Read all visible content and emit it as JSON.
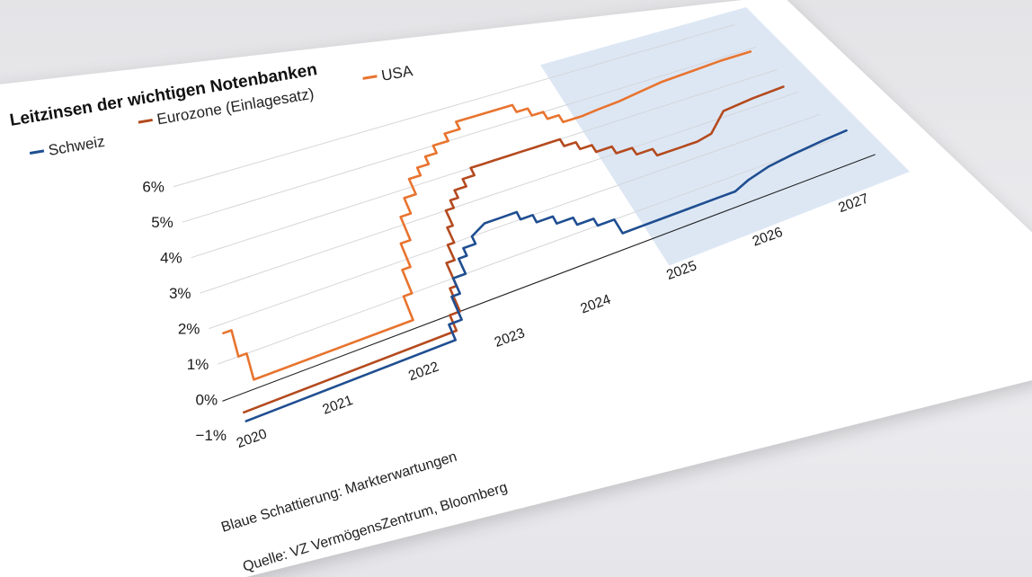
{
  "chart_data": {
    "type": "line",
    "title": "Leitzinsen der wichtigen Notenbanken",
    "legend": [
      "Schweiz",
      "Eurozone (Einlagesatz)",
      "USA"
    ],
    "y_tick_labels": [
      "6%",
      "5%",
      "4%",
      "3%",
      "2%",
      "1%",
      "0%",
      "−1%"
    ],
    "x_tick_labels": [
      "2020",
      "2021",
      "2022",
      "2023",
      "2024",
      "2025",
      "2026",
      "2027"
    ],
    "ylim": [
      -1,
      6.5
    ],
    "xlim": [
      2019.85,
      2027.7
    ],
    "shaded_region": {
      "from": 2024.9,
      "to": 2027.7,
      "label": "Blaue Schattierung: Markterwartungen"
    },
    "series": [
      {
        "name": "Schweiz",
        "color": "#1f4e91",
        "x": [
          2020.0,
          2022.45,
          2022.45,
          2022.6,
          2022.6,
          2022.7,
          2022.7,
          2022.85,
          2022.85,
          2022.95,
          2022.95,
          2023.1,
          2023.1,
          2023.3,
          2023.5,
          2023.7,
          2023.7,
          2023.85,
          2023.85,
          2024.05,
          2024.05,
          2024.25,
          2024.25,
          2024.45,
          2024.45,
          2024.65,
          2024.65,
          2024.9,
          2025.0,
          2025.4,
          2025.8,
          2026.0,
          2026.2,
          2026.5,
          2026.8,
          2027.2,
          2027.5
        ],
        "values": [
          -0.75,
          -0.75,
          -0.25,
          -0.25,
          0.5,
          0.5,
          1.0,
          1.0,
          1.5,
          1.5,
          1.75,
          1.75,
          2.0,
          2.25,
          2.25,
          2.25,
          2.0,
          2.0,
          1.75,
          1.75,
          1.5,
          1.5,
          1.25,
          1.25,
          1.0,
          1.0,
          0.5,
          0.5,
          0.5,
          0.5,
          0.5,
          0.5,
          0.7,
          0.9,
          1.0,
          1.1,
          1.15
        ]
      },
      {
        "name": "Eurozone (Einlagesatz)",
        "color": "#b44a1e",
        "x": [
          2020.0,
          2022.5,
          2022.5,
          2022.62,
          2022.62,
          2022.7,
          2022.7,
          2022.8,
          2022.8,
          2022.88,
          2022.88,
          2022.95,
          2022.95,
          2023.05,
          2023.05,
          2023.15,
          2023.15,
          2023.3,
          2023.3,
          2023.45,
          2023.45,
          2023.6,
          2023.6,
          2023.75,
          2023.75,
          2023.95,
          2024.1,
          2024.25,
          2024.45,
          2024.6,
          2024.6,
          2024.75,
          2024.75,
          2024.9,
          2024.9,
          2025.1,
          2025.1,
          2025.3,
          2025.3,
          2025.5,
          2025.5,
          2025.8,
          2026.0,
          2026.2,
          2026.5,
          2026.9,
          2027.3
        ],
        "values": [
          -0.5,
          -0.5,
          0.0,
          0.0,
          0.75,
          0.75,
          1.5,
          1.5,
          2.0,
          2.0,
          2.5,
          2.5,
          3.0,
          3.0,
          3.25,
          3.25,
          3.5,
          3.5,
          3.75,
          3.75,
          4.0,
          4.0,
          4.0,
          4.0,
          4.0,
          4.0,
          4.0,
          4.0,
          4.0,
          4.0,
          3.75,
          3.75,
          3.5,
          3.5,
          3.25,
          3.25,
          3.0,
          3.0,
          2.75,
          2.75,
          2.5,
          2.5,
          2.5,
          2.6,
          3.2,
          3.3,
          3.35
        ]
      },
      {
        "name": "USA",
        "color": "#e8742f",
        "x": [
          2020.0,
          2020.1,
          2020.1,
          2020.2,
          2020.2,
          2020.28,
          2022.1,
          2022.1,
          2022.2,
          2022.2,
          2022.3,
          2022.3,
          2022.42,
          2022.42,
          2022.55,
          2022.55,
          2022.7,
          2022.7,
          2022.85,
          2022.85,
          2023.0,
          2023.0,
          2023.15,
          2023.15,
          2023.35,
          2023.35,
          2023.55,
          2023.55,
          2024.3,
          2024.3,
          2024.45,
          2024.45,
          2024.6,
          2024.6,
          2024.75,
          2024.75,
          2024.9,
          2024.9,
          2025.0,
          2025.2,
          2025.5,
          2025.8,
          2026.1,
          2026.5,
          2026.9,
          2027.3
        ],
        "values": [
          1.75,
          1.75,
          1.0,
          1.0,
          0.25,
          0.25,
          0.25,
          1.0,
          1.0,
          1.75,
          1.75,
          2.5,
          2.5,
          3.25,
          3.25,
          3.75,
          3.75,
          4.25,
          4.25,
          4.5,
          4.5,
          4.75,
          4.75,
          5.0,
          5.0,
          5.25,
          5.25,
          5.5,
          5.5,
          5.25,
          5.25,
          5.0,
          5.0,
          4.75,
          4.75,
          4.5,
          4.5,
          4.5,
          4.5,
          4.55,
          4.6,
          4.7,
          4.8,
          4.85,
          4.9,
          4.9
        ]
      }
    ],
    "source_lines": [
      "Blaue Schattierung: Markterwartungen",
      "Quelle: VZ VermögensZentrum, Bloomberg"
    ]
  },
  "colors": {
    "shading": "#dde7f4",
    "card": "#ffffff",
    "grid": "#d4d6da",
    "zero_line": "#222222"
  }
}
